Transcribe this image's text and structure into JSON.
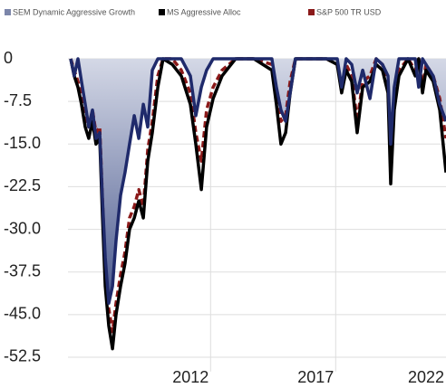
{
  "chart_data": {
    "type": "line",
    "x": [
      2006.41,
      2006.55,
      2006.7,
      2006.84,
      2006.99,
      2007.13,
      2007.28,
      2007.42,
      2007.57,
      2007.68,
      2007.79,
      2007.93,
      2008.08,
      2008.22,
      2008.4,
      2008.58,
      2008.76,
      2008.95,
      2009.13,
      2009.31,
      2009.49,
      2009.67,
      2009.89,
      2010.1,
      2010.47,
      2010.83,
      2011.19,
      2011.41,
      2011.63,
      2011.84,
      2012.1,
      2012.46,
      2013.0,
      2013.73,
      2014.45,
      2014.63,
      2014.81,
      2015.0,
      2015.18,
      2015.39,
      2015.9,
      2016.63,
      2017.06,
      2017.24,
      2017.42,
      2017.64,
      2017.86,
      2018.08,
      2018.37,
      2018.62,
      2018.87,
      2019.09,
      2019.2,
      2019.34,
      2019.53,
      2019.89,
      2020.18,
      2020.32,
      2020.47,
      2020.61,
      2020.9,
      2021.16,
      2021.41
    ],
    "series": [
      {
        "name": "SEM Dynamic Aggressive Growth",
        "color": "#1f2a6b",
        "fill": true,
        "values": [
          0,
          -3,
          0,
          -4,
          -8,
          -12,
          -9,
          -14,
          -13,
          -25,
          -35,
          -43,
          -40,
          -32,
          -24,
          -20,
          -15,
          -10,
          -14,
          -8,
          -12,
          -2,
          0,
          0,
          0,
          0,
          -3,
          -10,
          -5,
          -2,
          0,
          0,
          0,
          0,
          0,
          -5,
          -9,
          -11,
          -6,
          0,
          0,
          0,
          0,
          -5,
          0,
          -1,
          -6,
          -2,
          -7,
          0,
          -1,
          -3,
          -15,
          -5,
          0,
          0,
          0,
          -5,
          0,
          -1,
          -3,
          -8,
          -11
        ]
      },
      {
        "name": "MS Aggressive Alloc",
        "color": "#000000",
        "values": [
          0,
          -3,
          -5,
          -8,
          -12,
          -14,
          -11,
          -15,
          -14,
          -28,
          -40,
          -47,
          -51,
          -45,
          -40,
          -36,
          -30,
          -28,
          -25,
          -28,
          -18,
          -13,
          -5,
          0,
          -1,
          -3,
          -8,
          -15,
          -23,
          -12,
          -7,
          -3,
          0,
          0,
          -2,
          -8,
          -15,
          -13,
          -6,
          0,
          0,
          0,
          -1,
          -6,
          -2,
          -4,
          -13,
          -5,
          -4,
          -1,
          -2,
          -6,
          -22,
          -9,
          -3,
          0,
          -3,
          0,
          -6,
          -2,
          -4,
          -9,
          -20
        ]
      },
      {
        "name": "S&P 500 TR USD",
        "color": "#8b1a1a",
        "dashed": true,
        "values": [
          0,
          -2,
          -4,
          -6,
          -10,
          -12,
          -9,
          -13,
          -12,
          -25,
          -37,
          -44,
          -48,
          -43,
          -38,
          -34,
          -28,
          -26,
          -23,
          -26,
          -16,
          -11,
          -3,
          0,
          0,
          -2,
          -6,
          -13,
          -18,
          -9,
          -5,
          -2,
          0,
          0,
          -1,
          -6,
          -11,
          -10,
          -4,
          0,
          0,
          0,
          -1,
          -5,
          -1,
          -3,
          -11,
          -4,
          -3,
          0,
          -1,
          -5,
          -18,
          -7,
          -2,
          0,
          -2,
          0,
          -5,
          -1,
          -3,
          -7,
          -14
        ]
      }
    ],
    "xlim": [
      2006.3,
      2021.41
    ],
    "xticks": [
      2012,
      2017,
      2022
    ],
    "ylim": [
      -55,
      0
    ],
    "yticks": [
      0,
      {
        "value": -7.5,
        "label": "-7.5"
      },
      {
        "value": -15,
        "label": "-15.0"
      },
      {
        "value": -22.5,
        "label": "-22.5"
      },
      {
        "value": -30,
        "label": "-30.0"
      },
      {
        "value": -37.5,
        "label": "-37.5"
      },
      {
        "value": -45,
        "label": "-45.0"
      },
      {
        "value": -52.5,
        "label": "-52.5"
      }
    ],
    "grid": true,
    "legend": "top"
  }
}
